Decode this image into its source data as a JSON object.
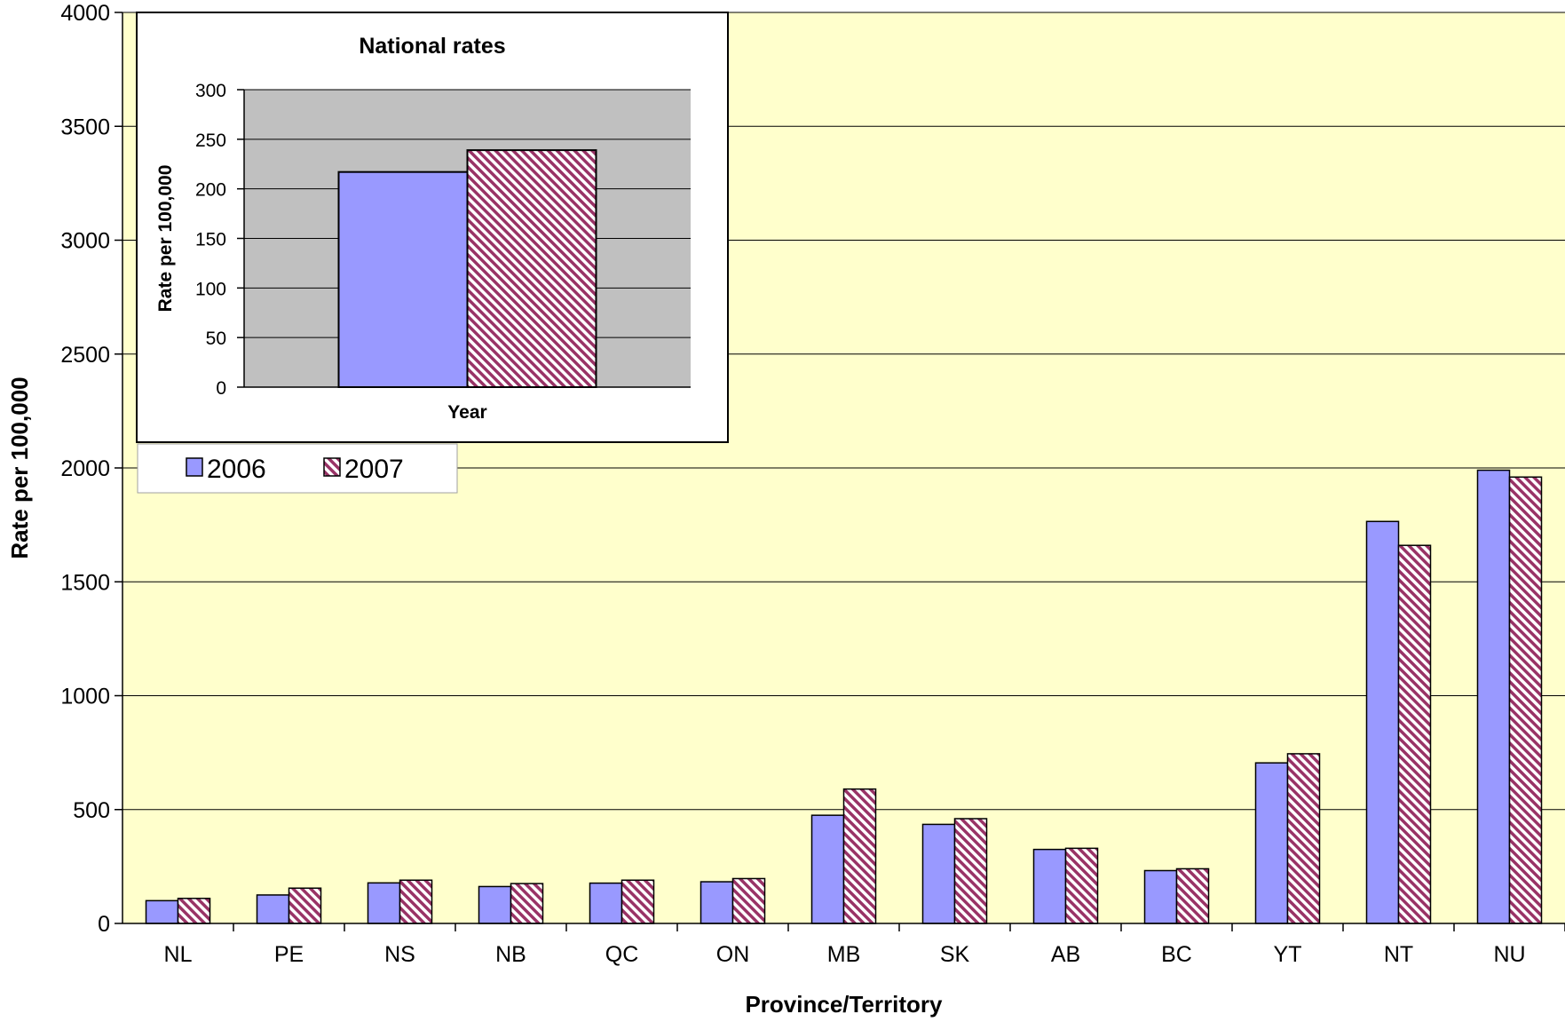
{
  "chart_data": [
    {
      "type": "bar",
      "xlabel": "Province/Territory",
      "ylabel": "Rate per 100,000",
      "ylim": [
        0,
        4000
      ],
      "yticks": [
        0,
        500,
        1000,
        1500,
        2000,
        2500,
        3000,
        3500,
        4000
      ],
      "grid": true,
      "plot_background": "#FFFFCC",
      "categories": [
        "NL",
        "PE",
        "NS",
        "NB",
        "QC",
        "ON",
        "MB",
        "SK",
        "AB",
        "BC",
        "YT",
        "NT",
        "NU"
      ],
      "series": [
        {
          "name": "2006",
          "color": "#9999FF",
          "pattern": "solid",
          "values": [
            100,
            125,
            178,
            162,
            177,
            183,
            475,
            435,
            325,
            232,
            705,
            1765,
            1990
          ]
        },
        {
          "name": "2007",
          "color": "#993366",
          "pattern": "diagonal-hatch",
          "values": [
            110,
            155,
            190,
            175,
            190,
            197,
            590,
            460,
            330,
            240,
            745,
            1660,
            1960
          ]
        }
      ],
      "legend": {
        "placement": "top-left",
        "entries": [
          "2006",
          "2007"
        ]
      }
    },
    {
      "type": "bar",
      "title": "National rates",
      "xlabel": "Year",
      "ylabel": "Rate per 100,000",
      "ylim": [
        0,
        300
      ],
      "yticks": [
        0,
        50,
        100,
        150,
        200,
        250,
        300
      ],
      "grid": true,
      "plot_background": "#C0C0C0",
      "categories": [
        ""
      ],
      "series": [
        {
          "name": "2006",
          "color": "#9999FF",
          "pattern": "solid",
          "values": [
            217
          ]
        },
        {
          "name": "2007",
          "color": "#993366",
          "pattern": "diagonal-hatch",
          "values": [
            239
          ]
        }
      ]
    }
  ]
}
